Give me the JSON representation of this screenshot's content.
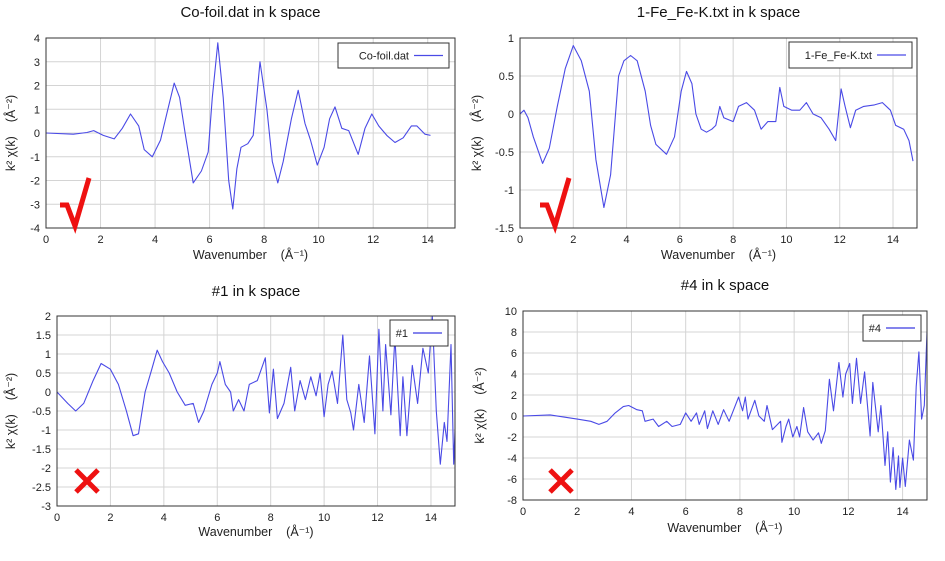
{
  "chart_data": [
    {
      "type": "line",
      "title": "Co-foil.dat in k space",
      "xlabel": "Wavenumber    (Å⁻¹)",
      "ylabel": "k² χ(k)    (Å⁻²)",
      "xlim": [
        0,
        15
      ],
      "ylim": [
        -4,
        4
      ],
      "xticks": [
        0,
        2,
        4,
        6,
        8,
        10,
        12,
        14
      ],
      "yticks": [
        -4,
        -3,
        -2,
        -1,
        0,
        1,
        2,
        3,
        4
      ],
      "grid": true,
      "legend": {
        "label": "Co-foil.dat",
        "placement": "top-right"
      },
      "mark": {
        "type": "check",
        "color": "#ee1111"
      },
      "series": [
        {
          "name": "Co-foil.dat",
          "color": "#4a4ae6",
          "x": [
            0,
            1,
            1.5,
            1.75,
            2.1,
            2.5,
            2.8,
            3.1,
            3.4,
            3.6,
            3.9,
            4.2,
            4.45,
            4.7,
            4.9,
            5.1,
            5.4,
            5.7,
            5.95,
            6.1,
            6.3,
            6.5,
            6.7,
            6.85,
            7.0,
            7.15,
            7.4,
            7.6,
            7.85,
            8.1,
            8.3,
            8.5,
            8.7,
            9.0,
            9.25,
            9.5,
            9.7,
            9.95,
            10.2,
            10.4,
            10.6,
            10.85,
            11.1,
            11.45,
            11.7,
            11.95,
            12.2,
            12.5,
            12.8,
            13.1,
            13.4,
            13.6,
            13.9,
            14.1
          ],
          "y": [
            0,
            -0.05,
            0.02,
            0.1,
            -0.1,
            -0.25,
            0.2,
            0.8,
            0.3,
            -0.7,
            -1.0,
            -0.3,
            0.9,
            2.1,
            1.5,
            0,
            -2.1,
            -1.6,
            -0.8,
            1.5,
            3.8,
            1.5,
            -2,
            -3.2,
            -1.5,
            -0.6,
            -0.45,
            -0.1,
            3.0,
            1,
            -1.2,
            -2.1,
            -1.2,
            0.6,
            1.8,
            0.4,
            -0.3,
            -1.35,
            -0.6,
            0.6,
            1.1,
            0.2,
            0.1,
            -0.9,
            0.2,
            0.8,
            0.3,
            -0.1,
            -0.4,
            -0.2,
            0.3,
            0.3,
            -0.05,
            -0.1
          ]
        }
      ]
    },
    {
      "type": "line",
      "title": "1-Fe_Fe-K.txt in k space",
      "xlabel": "Wavenumber    (Å⁻¹)",
      "ylabel": "k² χ(k)    (Å⁻²)",
      "xlim": [
        0,
        14.9
      ],
      "ylim": [
        -1.5,
        1
      ],
      "xticks": [
        0,
        2,
        4,
        6,
        8,
        10,
        12,
        14
      ],
      "yticks": [
        -1.5,
        -1,
        -0.5,
        0,
        0.5,
        1
      ],
      "grid": true,
      "legend": {
        "label": "1-Fe_Fe-K.txt",
        "placement": "top-right"
      },
      "mark": {
        "type": "check",
        "color": "#ee1111"
      },
      "series": [
        {
          "name": "1-Fe_Fe-K.txt",
          "color": "#4a4ae6",
          "x": [
            0,
            0.15,
            0.3,
            0.5,
            0.85,
            1.1,
            1.4,
            1.7,
            2.0,
            2.3,
            2.6,
            2.85,
            3.15,
            3.4,
            3.7,
            3.9,
            4.15,
            4.4,
            4.7,
            4.9,
            5.1,
            5.5,
            5.8,
            6.05,
            6.25,
            6.45,
            6.6,
            6.8,
            7.0,
            7.2,
            7.35,
            7.5,
            7.65,
            8.0,
            8.2,
            8.5,
            8.8,
            9.05,
            9.3,
            9.6,
            9.75,
            9.9,
            10.2,
            10.5,
            10.75,
            11.0,
            11.3,
            11.6,
            11.85,
            12.05,
            12.2,
            12.4,
            12.6,
            12.9,
            13.3,
            13.6,
            13.9,
            14.1,
            14.4,
            14.6,
            14.75
          ],
          "y": [
            0,
            0.05,
            -0.05,
            -0.3,
            -0.65,
            -0.45,
            0.1,
            0.6,
            0.9,
            0.7,
            0.3,
            -0.6,
            -1.23,
            -0.8,
            0.5,
            0.7,
            0.77,
            0.7,
            0.3,
            -0.15,
            -0.4,
            -0.53,
            -0.3,
            0.3,
            0.56,
            0.4,
            0,
            -0.2,
            -0.24,
            -0.2,
            -0.15,
            0.1,
            -0.05,
            -0.1,
            0.1,
            0.15,
            0.05,
            -0.2,
            -0.1,
            -0.1,
            0.35,
            0.1,
            0.05,
            0.05,
            0.15,
            0,
            -0.05,
            -0.2,
            -0.35,
            0.33,
            0.1,
            -0.18,
            0.05,
            0.1,
            0.12,
            0.15,
            0.05,
            -0.15,
            -0.2,
            -0.35,
            -0.62
          ]
        }
      ]
    },
    {
      "type": "line",
      "title": "#1 in k space",
      "xlabel": "Wavenumber    (Å⁻¹)",
      "ylabel": "k² χ(k)    (Å⁻²)",
      "xlim": [
        0,
        14.9
      ],
      "ylim": [
        -3,
        2
      ],
      "xticks": [
        0,
        2,
        4,
        6,
        8,
        10,
        12,
        14
      ],
      "yticks": [
        -3,
        -2.5,
        -2,
        -1.5,
        -1,
        -0.5,
        0,
        0.5,
        1,
        1.5,
        2
      ],
      "grid": true,
      "legend": {
        "label": "#1",
        "placement": "top-right"
      },
      "mark": {
        "type": "cross",
        "color": "#ee1111"
      },
      "series": [
        {
          "name": "#1",
          "color": "#3a3ae0",
          "x": [
            0,
            0.4,
            0.7,
            1.0,
            1.35,
            1.65,
            2.0,
            2.3,
            2.6,
            2.85,
            3.05,
            3.3,
            3.55,
            3.75,
            3.95,
            4.2,
            4.5,
            4.8,
            5.1,
            5.3,
            5.5,
            5.8,
            6.0,
            6.1,
            6.3,
            6.5,
            6.6,
            6.8,
            7.0,
            7.2,
            7.5,
            7.8,
            7.95,
            8.1,
            8.25,
            8.5,
            8.75,
            8.9,
            9.1,
            9.3,
            9.5,
            9.7,
            9.85,
            10.0,
            10.15,
            10.3,
            10.5,
            10.7,
            10.85,
            11.0,
            11.1,
            11.3,
            11.5,
            11.7,
            11.9,
            12.05,
            12.2,
            12.3,
            12.5,
            12.65,
            12.85,
            12.95,
            13.1,
            13.3,
            13.5,
            13.7,
            13.9,
            14.05,
            14.2,
            14.35,
            14.5,
            14.6,
            14.75,
            14.85,
            14.95,
            15.05,
            15.2
          ],
          "y": [
            0,
            -0.3,
            -0.5,
            -0.3,
            0.3,
            0.75,
            0.6,
            0.2,
            -0.5,
            -1.15,
            -1.1,
            0,
            0.6,
            1.1,
            0.8,
            0.5,
            0,
            -0.35,
            -0.3,
            -0.8,
            -0.5,
            0.2,
            0.5,
            0.8,
            0.2,
            0,
            -0.5,
            -0.2,
            -0.5,
            0.2,
            0.3,
            0.9,
            -0.55,
            0.6,
            -0.7,
            -0.3,
            0.65,
            -0.5,
            0.3,
            -0.2,
            0.4,
            -0.1,
            0.5,
            -0.65,
            0.2,
            0.55,
            -0.3,
            1.5,
            -0.2,
            -0.55,
            -1.0,
            0.2,
            -0.8,
            0.95,
            -1.1,
            1.65,
            -0.5,
            1.25,
            -0.6,
            1.45,
            -1.15,
            0.4,
            -1.15,
            0.7,
            -0.3,
            1.15,
            0.5,
            2.0,
            -0.5,
            -1.9,
            -0.8,
            -1.3,
            1.25,
            -1.9,
            -0.1,
            -2.85,
            1.2
          ]
        }
      ]
    },
    {
      "type": "line",
      "title": "#4 in k space",
      "xlabel": "Wavenumber    (Å⁻¹)",
      "ylabel": "k² χ(k)    (Å⁻²)",
      "xlim": [
        0,
        14.9
      ],
      "ylim": [
        -8,
        10
      ],
      "xticks": [
        0,
        2,
        4,
        6,
        8,
        10,
        12,
        14
      ],
      "yticks": [
        -8,
        -6,
        -4,
        -2,
        0,
        2,
        4,
        6,
        8,
        10
      ],
      "grid": true,
      "legend": {
        "label": "#4",
        "placement": "top-right"
      },
      "mark": {
        "type": "cross",
        "color": "#ee1111"
      },
      "series": [
        {
          "name": "#4",
          "color": "#3a3ae0",
          "x": [
            0,
            1,
            2,
            2.5,
            2.8,
            3.1,
            3.4,
            3.7,
            3.9,
            4.2,
            4.4,
            4.5,
            4.8,
            5.0,
            5.3,
            5.5,
            5.8,
            6.0,
            6.2,
            6.4,
            6.5,
            6.7,
            6.8,
            7.0,
            7.2,
            7.4,
            7.6,
            7.8,
            7.95,
            8.1,
            8.2,
            8.3,
            8.55,
            8.7,
            8.9,
            9.0,
            9.2,
            9.5,
            9.55,
            9.7,
            9.8,
            9.95,
            10.1,
            10.2,
            10.35,
            10.5,
            10.7,
            10.9,
            11.0,
            11.15,
            11.3,
            11.45,
            11.65,
            11.8,
            11.9,
            12.05,
            12.15,
            12.3,
            12.45,
            12.6,
            12.8,
            12.9,
            13.1,
            13.2,
            13.35,
            13.45,
            13.55,
            13.65,
            13.75,
            13.85,
            13.9,
            14.0,
            14.1,
            14.25,
            14.4,
            14.5,
            14.6,
            14.7,
            14.8,
            14.9,
            14.95
          ],
          "y": [
            0,
            0.1,
            -0.3,
            -0.5,
            -0.8,
            -0.5,
            0.3,
            0.9,
            1.0,
            0.6,
            0.5,
            -0.5,
            -0.3,
            -1.0,
            -0.5,
            -1.0,
            -0.8,
            0.3,
            -0.5,
            0.3,
            -0.8,
            0.5,
            -1.2,
            0.5,
            -0.8,
            0.6,
            -0.5,
            0.8,
            1.8,
            0.5,
            1.8,
            -0.3,
            1.5,
            0,
            -0.5,
            1.0,
            -1.3,
            -0.5,
            -2.5,
            -1.0,
            -0.3,
            -2,
            -1.0,
            -2,
            0.8,
            -1.5,
            -2.3,
            -1.6,
            -2.6,
            -1.4,
            3.5,
            0.5,
            5.1,
            1.8,
            4.0,
            5,
            1.2,
            5.5,
            1.2,
            4.2,
            -1.9,
            3.2,
            -1.5,
            1,
            -4.7,
            -1.5,
            -6.3,
            -3,
            -7,
            -3.8,
            -6.8,
            -4,
            -6.7,
            -2.3,
            -4.2,
            2.8,
            6.1,
            -0.3,
            1.0,
            8,
            10
          ]
        }
      ]
    }
  ]
}
